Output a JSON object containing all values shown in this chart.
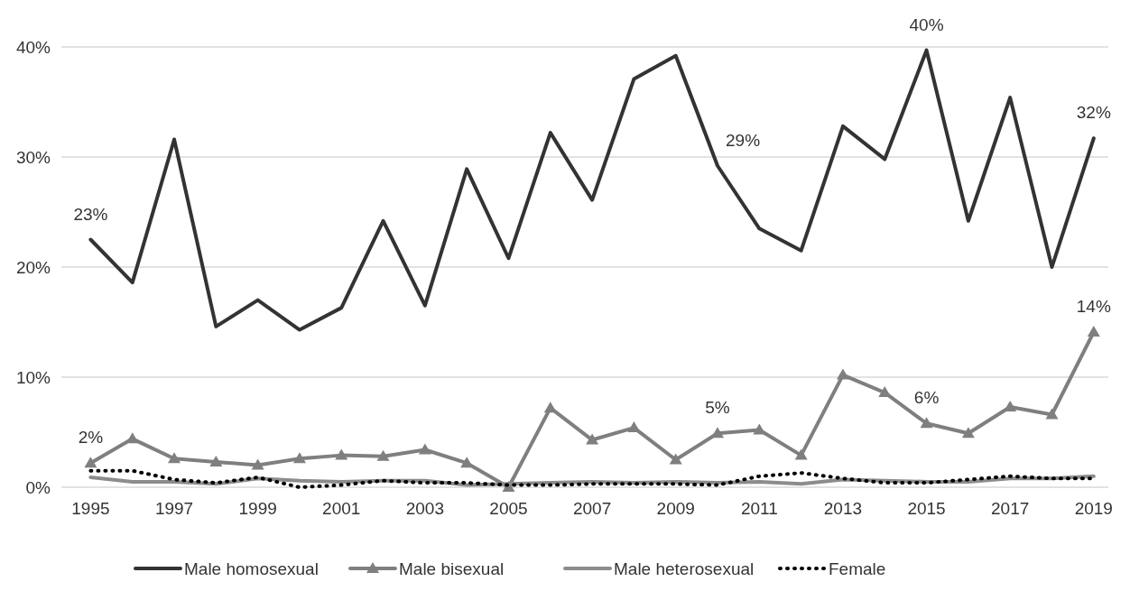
{
  "chart_data": {
    "type": "line",
    "x": [
      1995,
      1996,
      1997,
      1998,
      1999,
      2000,
      2001,
      2002,
      2003,
      2004,
      2005,
      2006,
      2007,
      2008,
      2009,
      2010,
      2011,
      2012,
      2013,
      2014,
      2015,
      2016,
      2017,
      2018,
      2019
    ],
    "xlim": [
      1994.3,
      2019.35
    ],
    "xticks": [
      1995,
      1997,
      1999,
      2001,
      2003,
      2005,
      2007,
      2009,
      2011,
      2013,
      2015,
      2017,
      2019
    ],
    "ylim": [
      0,
      40
    ],
    "yticks": [
      {
        "value": 0,
        "label": "0%"
      },
      {
        "value": 10,
        "label": "10%"
      },
      {
        "value": 20,
        "label": "20%"
      },
      {
        "value": 30,
        "label": "30%"
      },
      {
        "value": 40,
        "label": "40%"
      }
    ],
    "grid": "y",
    "legend": "bottom",
    "series": [
      {
        "name": "Male homosexual",
        "color": "#333333",
        "marker": "none",
        "line_style": "solid",
        "values": [
          22.5,
          18.6,
          31.6,
          14.6,
          17.0,
          14.3,
          16.3,
          24.2,
          16.5,
          28.9,
          20.8,
          32.2,
          26.1,
          37.1,
          39.2,
          29.2,
          23.5,
          21.5,
          32.8,
          29.8,
          39.7,
          24.2,
          35.4,
          20.0,
          31.7
        ],
        "value_labels": [
          "23%",
          null,
          null,
          null,
          null,
          null,
          null,
          null,
          null,
          null,
          null,
          null,
          null,
          null,
          null,
          "29%",
          null,
          null,
          null,
          null,
          "40%",
          null,
          null,
          null,
          "32%"
        ]
      },
      {
        "name": "Male bisexual",
        "color": "#7f7f7f",
        "marker": "triangle",
        "line_style": "solid",
        "values": [
          2.2,
          4.4,
          2.6,
          2.3,
          2.0,
          2.6,
          2.9,
          2.8,
          3.4,
          2.2,
          0,
          7.2,
          4.3,
          5.4,
          2.5,
          4.9,
          5.2,
          2.9,
          10.2,
          8.6,
          5.8,
          4.9,
          7.3,
          6.6,
          14.1
        ],
        "value_labels": [
          "2%",
          null,
          null,
          null,
          null,
          null,
          null,
          null,
          null,
          null,
          null,
          null,
          null,
          null,
          null,
          "5%",
          null,
          null,
          null,
          null,
          "6%",
          null,
          null,
          null,
          "14%"
        ]
      },
      {
        "name": "Male heterosexual",
        "color": "#8c8c8c",
        "marker": "none",
        "line_style": "solid",
        "values": [
          0.9,
          0.5,
          0.5,
          0.3,
          0.8,
          0.6,
          0.5,
          0.6,
          0.6,
          0.2,
          0.3,
          0.4,
          0.5,
          0.4,
          0.5,
          0.4,
          0.5,
          0.3,
          0.7,
          0.6,
          0.5,
          0.5,
          0.8,
          0.8,
          1.0
        ]
      },
      {
        "name": "Female",
        "color": "#000000",
        "marker": "none",
        "line_style": "dotted",
        "values": [
          1.5,
          1.5,
          0.7,
          0.4,
          0.9,
          0.0,
          0.2,
          0.6,
          0.4,
          0.4,
          0.2,
          0.2,
          0.3,
          0.3,
          0.3,
          0.2,
          1.0,
          1.3,
          0.8,
          0.4,
          0.4,
          0.7,
          1.0,
          0.8,
          0.8
        ]
      }
    ]
  }
}
